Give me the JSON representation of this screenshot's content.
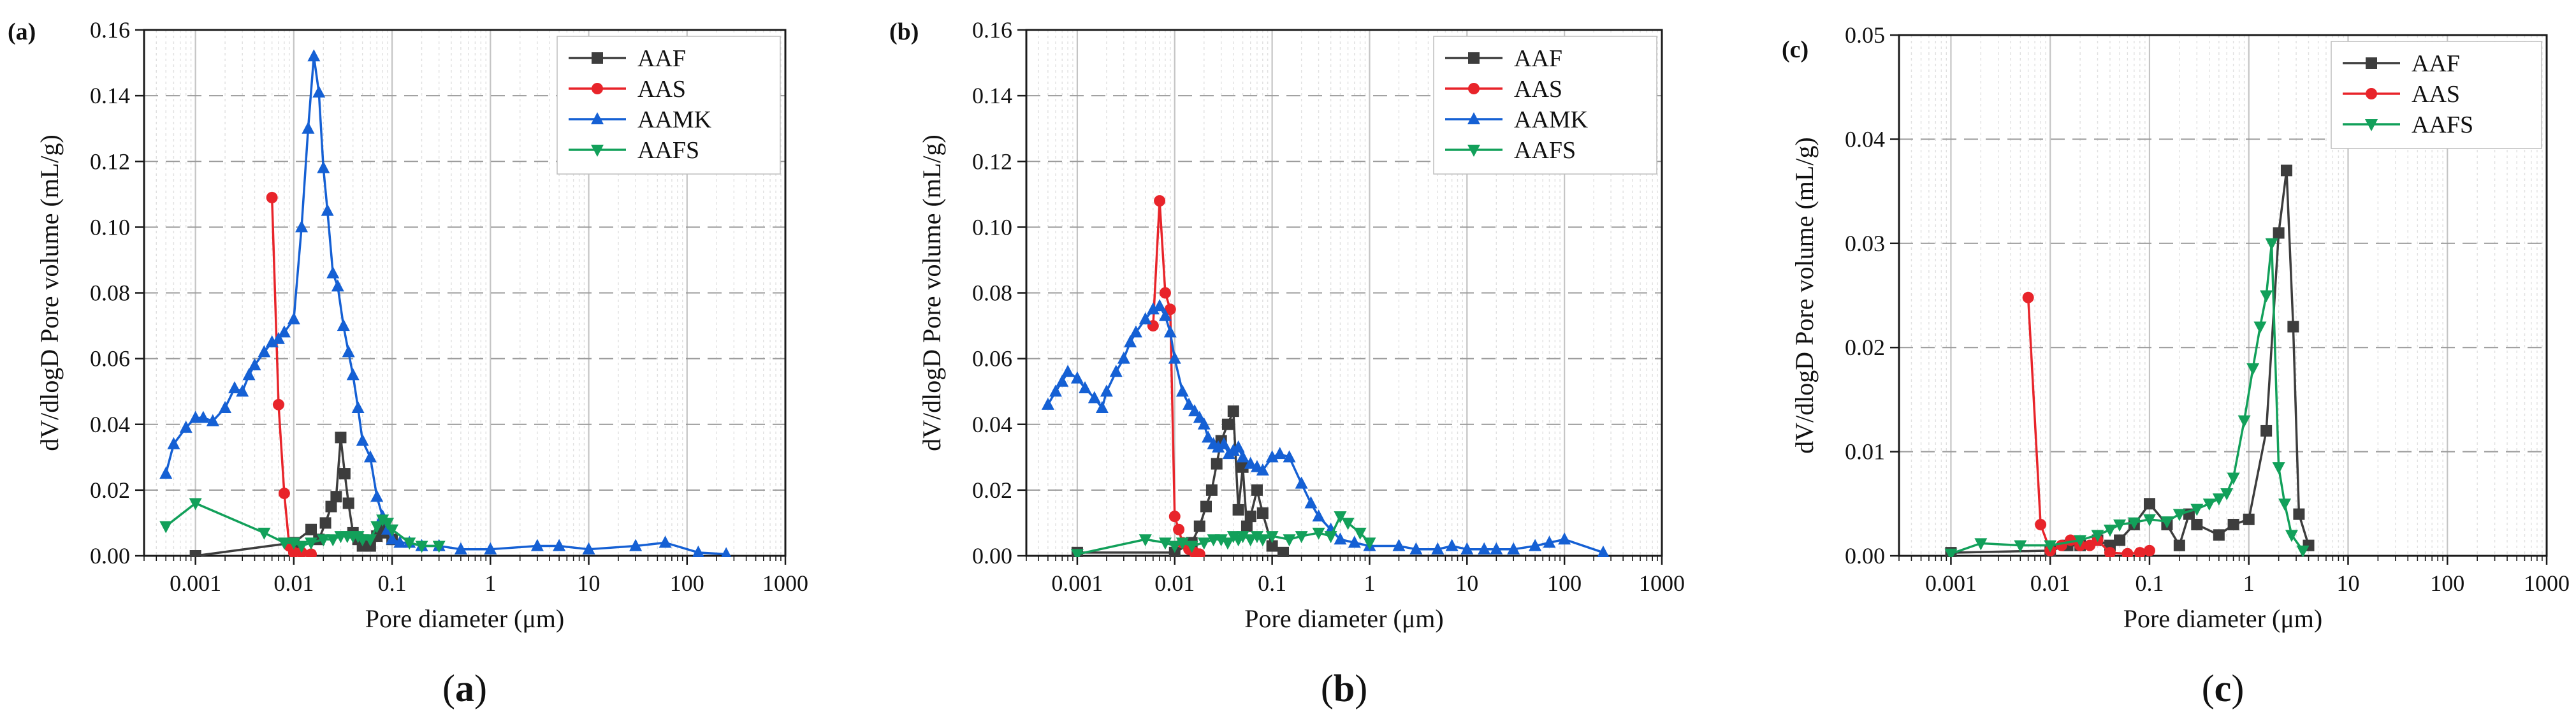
{
  "chart_data": [
    {
      "type": "line",
      "panel_tag": "(a)",
      "caption_open": "(",
      "caption_letter": "a",
      "caption_close": ")",
      "xlabel": "Pore diameter (μm)",
      "ylabel": "dV/dlogD Pore volume  (mL/g)",
      "xscale": "log",
      "xlim": [
        0.0003,
        1000
      ],
      "ylim": [
        0,
        0.16
      ],
      "xticks": [
        0.001,
        0.01,
        0.1,
        1,
        10,
        100,
        1000
      ],
      "xtick_labels": [
        "0.001",
        "0.01",
        "0.1",
        "1",
        "10",
        "100",
        "1000"
      ],
      "yticks": [
        0,
        0.02,
        0.04,
        0.06,
        0.08,
        0.1,
        0.12,
        0.14,
        0.16
      ],
      "ytick_labels": [
        "0.00",
        "0.02",
        "0.04",
        "0.06",
        "0.08",
        "0.10",
        "0.12",
        "0.14",
        "0.16"
      ],
      "grid": true,
      "legend_position": "top-right",
      "series": [
        {
          "name": "AAF",
          "color": "#3d3d3d",
          "marker": "square",
          "x": [
            0.001,
            0.01,
            0.015,
            0.018,
            0.021,
            0.024,
            0.027,
            0.03,
            0.033,
            0.036,
            0.04,
            0.045,
            0.05,
            0.06,
            0.07,
            0.08,
            0.09,
            0.1
          ],
          "y": [
            0,
            0.004,
            0.008,
            0.005,
            0.01,
            0.015,
            0.018,
            0.036,
            0.025,
            0.016,
            0.007,
            0.005,
            0.003,
            0.003,
            0.006,
            0.009,
            0.007,
            0.005
          ]
        },
        {
          "name": "AAS",
          "color": "#e8242a",
          "marker": "circle",
          "x": [
            0.006,
            0.007,
            0.008,
            0.009,
            0.01,
            0.012,
            0.015
          ],
          "y": [
            0.109,
            0.046,
            0.019,
            0.003,
            0.001,
            0.001,
            0.0005
          ]
        },
        {
          "name": "AAMK",
          "color": "#1560d4",
          "marker": "triangle-up",
          "x": [
            0.0005,
            0.0006,
            0.0008,
            0.001,
            0.0012,
            0.0015,
            0.002,
            0.0025,
            0.003,
            0.0035,
            0.004,
            0.005,
            0.006,
            0.007,
            0.008,
            0.01,
            0.012,
            0.014,
            0.016,
            0.018,
            0.02,
            0.022,
            0.025,
            0.028,
            0.032,
            0.036,
            0.04,
            0.045,
            0.05,
            0.06,
            0.07,
            0.08,
            0.09,
            0.1,
            0.12,
            0.15,
            0.2,
            0.3,
            0.5,
            1,
            3,
            5,
            10,
            30,
            60,
            130,
            250
          ],
          "y": [
            0.025,
            0.034,
            0.039,
            0.042,
            0.042,
            0.041,
            0.045,
            0.051,
            0.05,
            0.055,
            0.058,
            0.062,
            0.065,
            0.066,
            0.068,
            0.072,
            0.1,
            0.13,
            0.152,
            0.141,
            0.118,
            0.105,
            0.086,
            0.082,
            0.07,
            0.062,
            0.055,
            0.045,
            0.035,
            0.03,
            0.018,
            0.012,
            0.008,
            0.005,
            0.004,
            0.004,
            0.003,
            0.003,
            0.002,
            0.002,
            0.003,
            0.003,
            0.002,
            0.003,
            0.004,
            0.001,
            0.0005
          ]
        },
        {
          "name": "AAFS",
          "color": "#12a05a",
          "marker": "triangle-down",
          "x": [
            0.0005,
            0.001,
            0.005,
            0.008,
            0.01,
            0.012,
            0.015,
            0.02,
            0.025,
            0.03,
            0.035,
            0.04,
            0.045,
            0.05,
            0.06,
            0.07,
            0.08,
            0.09,
            0.1,
            0.15,
            0.2,
            0.3
          ],
          "y": [
            0.009,
            0.016,
            0.007,
            0.004,
            0.004,
            0.003,
            0.004,
            0.005,
            0.005,
            0.006,
            0.006,
            0.006,
            0.006,
            0.005,
            0.005,
            0.009,
            0.011,
            0.01,
            0.008,
            0.004,
            0.003,
            0.003
          ]
        }
      ]
    },
    {
      "type": "line",
      "panel_tag": "(b)",
      "caption_open": "(",
      "caption_letter": "b",
      "caption_close": ")",
      "xlabel": "Pore diameter (μm)",
      "ylabel": "dV/dlogD Pore volume  (mL/g)",
      "xscale": "log",
      "xlim": [
        0.0003,
        1000
      ],
      "ylim": [
        0,
        0.16
      ],
      "xticks": [
        0.001,
        0.01,
        0.1,
        1,
        10,
        100,
        1000
      ],
      "xtick_labels": [
        "0.001",
        "0.01",
        "0.1",
        "1",
        "10",
        "100",
        "1000"
      ],
      "yticks": [
        0,
        0.02,
        0.04,
        0.06,
        0.08,
        0.1,
        0.12,
        0.14,
        0.16
      ],
      "ytick_labels": [
        "0.00",
        "0.02",
        "0.04",
        "0.06",
        "0.08",
        "0.10",
        "0.12",
        "0.14",
        "0.16"
      ],
      "grid": true,
      "legend_position": "top-right",
      "series": [
        {
          "name": "AAF",
          "color": "#3d3d3d",
          "marker": "square",
          "x": [
            0.001,
            0.01,
            0.015,
            0.018,
            0.021,
            0.024,
            0.027,
            0.03,
            0.035,
            0.04,
            0.045,
            0.05,
            0.055,
            0.06,
            0.07,
            0.08,
            0.1,
            0.13
          ],
          "y": [
            0.001,
            0.001,
            0.004,
            0.009,
            0.015,
            0.02,
            0.028,
            0.035,
            0.04,
            0.044,
            0.014,
            0.027,
            0.009,
            0.012,
            0.02,
            0.013,
            0.003,
            0.001
          ]
        },
        {
          "name": "AAS",
          "color": "#e8242a",
          "marker": "circle",
          "x": [
            0.006,
            0.007,
            0.008,
            0.009,
            0.01,
            0.011,
            0.012,
            0.014,
            0.016,
            0.018
          ],
          "y": [
            0.07,
            0.108,
            0.08,
            0.075,
            0.012,
            0.008,
            0.004,
            0.002,
            0.001,
            0.0005
          ]
        },
        {
          "name": "AAMK",
          "color": "#1560d4",
          "marker": "triangle-up",
          "x": [
            0.0005,
            0.0006,
            0.0007,
            0.0008,
            0.001,
            0.0012,
            0.0015,
            0.0018,
            0.002,
            0.0025,
            0.003,
            0.0035,
            0.004,
            0.005,
            0.006,
            0.007,
            0.008,
            0.009,
            0.01,
            0.012,
            0.014,
            0.016,
            0.018,
            0.02,
            0.022,
            0.025,
            0.028,
            0.032,
            0.036,
            0.04,
            0.045,
            0.05,
            0.06,
            0.07,
            0.08,
            0.1,
            0.12,
            0.15,
            0.2,
            0.25,
            0.3,
            0.4,
            0.5,
            0.7,
            1,
            2,
            3,
            5,
            7,
            10,
            15,
            20,
            30,
            50,
            70,
            100,
            250
          ],
          "y": [
            0.046,
            0.05,
            0.053,
            0.056,
            0.054,
            0.051,
            0.048,
            0.045,
            0.05,
            0.056,
            0.06,
            0.065,
            0.068,
            0.072,
            0.075,
            0.076,
            0.073,
            0.068,
            0.06,
            0.05,
            0.046,
            0.044,
            0.042,
            0.04,
            0.036,
            0.034,
            0.033,
            0.034,
            0.031,
            0.032,
            0.033,
            0.03,
            0.028,
            0.027,
            0.026,
            0.03,
            0.031,
            0.03,
            0.022,
            0.016,
            0.012,
            0.008,
            0.005,
            0.004,
            0.003,
            0.003,
            0.002,
            0.002,
            0.003,
            0.002,
            0.002,
            0.002,
            0.002,
            0.003,
            0.004,
            0.005,
            0.001
          ]
        },
        {
          "name": "AAFS",
          "color": "#12a05a",
          "marker": "triangle-down",
          "x": [
            0.001,
            0.005,
            0.008,
            0.01,
            0.012,
            0.015,
            0.02,
            0.025,
            0.03,
            0.035,
            0.04,
            0.045,
            0.05,
            0.06,
            0.07,
            0.08,
            0.1,
            0.15,
            0.2,
            0.3,
            0.4,
            0.5,
            0.6,
            0.8,
            1.0
          ],
          "y": [
            0.0005,
            0.005,
            0.004,
            0.003,
            0.004,
            0.003,
            0.004,
            0.005,
            0.005,
            0.004,
            0.006,
            0.005,
            0.006,
            0.005,
            0.006,
            0.005,
            0.006,
            0.005,
            0.006,
            0.007,
            0.006,
            0.012,
            0.01,
            0.007,
            0.004
          ]
        }
      ]
    },
    {
      "type": "line",
      "panel_tag": "(c)",
      "caption_open": "(",
      "caption_letter": "c",
      "caption_close": ")",
      "xlabel": "Pore diameter (μm)",
      "ylabel": "dV/dlogD Pore volume  (mL/g)",
      "xscale": "log",
      "xlim": [
        0.0003,
        1000
      ],
      "ylim": [
        0,
        0.05
      ],
      "xticks": [
        0.001,
        0.01,
        0.1,
        1,
        10,
        100,
        1000
      ],
      "xtick_labels": [
        "0.001",
        "0.01",
        "0.1",
        "1",
        "10",
        "100",
        "1000"
      ],
      "yticks": [
        0,
        0.01,
        0.02,
        0.03,
        0.04,
        0.05
      ],
      "ytick_labels": [
        "0.00",
        "0.01",
        "0.02",
        "0.03",
        "0.04",
        "0.05"
      ],
      "grid": true,
      "legend_position": "top-right",
      "series": [
        {
          "name": "AAF",
          "color": "#3d3d3d",
          "marker": "square",
          "x": [
            0.001,
            0.01,
            0.015,
            0.02,
            0.03,
            0.04,
            0.05,
            0.07,
            0.1,
            0.15,
            0.2,
            0.25,
            0.3,
            0.5,
            0.7,
            1.0,
            1.5,
            2.0,
            2.4,
            2.8,
            3.2,
            4.0
          ],
          "y": [
            0.0003,
            0.0005,
            0.001,
            0.001,
            0.0015,
            0.001,
            0.0015,
            0.003,
            0.005,
            0.003,
            0.001,
            0.004,
            0.003,
            0.002,
            0.003,
            0.0035,
            0.012,
            0.031,
            0.037,
            0.022,
            0.004,
            0.001
          ]
        },
        {
          "name": "AAS",
          "color": "#e8242a",
          "marker": "circle",
          "x": [
            0.006,
            0.008,
            0.01,
            0.013,
            0.016,
            0.02,
            0.025,
            0.03,
            0.04,
            0.06,
            0.08,
            0.1
          ],
          "y": [
            0.0248,
            0.003,
            0.0005,
            0.001,
            0.0015,
            0.001,
            0.001,
            0.0015,
            0.0003,
            0.0002,
            0.0003,
            0.0005
          ]
        },
        {
          "name": "AAFS",
          "color": "#12a05a",
          "marker": "triangle-down",
          "x": [
            0.001,
            0.002,
            0.005,
            0.01,
            0.02,
            0.03,
            0.04,
            0.05,
            0.07,
            0.1,
            0.15,
            0.2,
            0.3,
            0.4,
            0.5,
            0.6,
            0.7,
            0.9,
            1.1,
            1.3,
            1.5,
            1.7,
            2.0,
            2.3,
            2.7,
            3.5
          ],
          "y": [
            0.0002,
            0.0012,
            0.001,
            0.001,
            0.0015,
            0.002,
            0.0025,
            0.003,
            0.0032,
            0.0035,
            0.0033,
            0.004,
            0.0045,
            0.005,
            0.0055,
            0.006,
            0.0075,
            0.013,
            0.018,
            0.022,
            0.025,
            0.03,
            0.0085,
            0.005,
            0.002,
            0.0005
          ]
        }
      ]
    }
  ]
}
